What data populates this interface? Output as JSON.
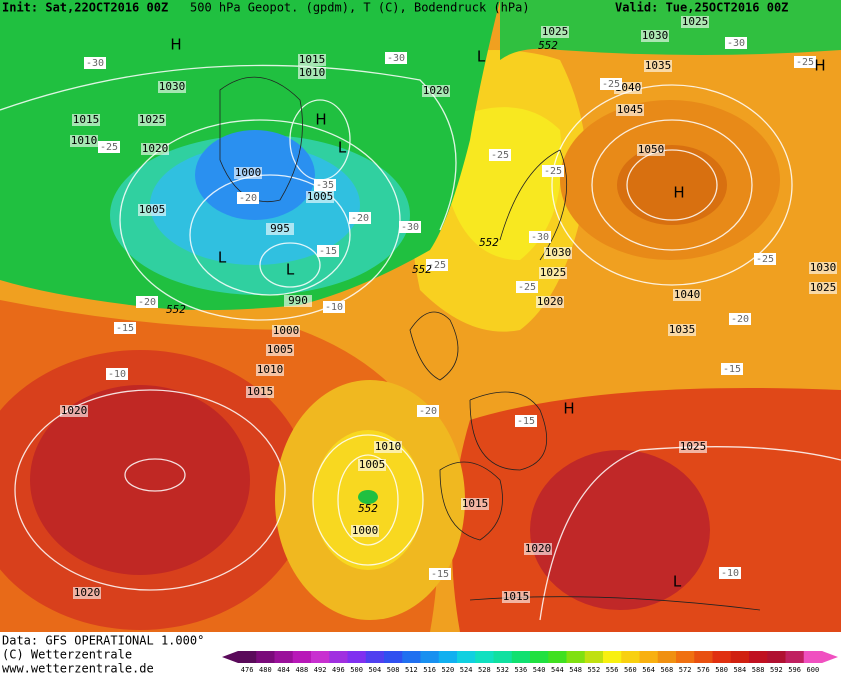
{
  "header": {
    "init": "Init: Sat,22OCT2016 00Z",
    "title": "500 hPa Geopot. (gpdm), T (C), Bodendruck (hPa)",
    "valid": "Valid: Tue,25OCT2016 00Z"
  },
  "isobar_labels": [
    "1025",
    "1030",
    "1025",
    "1035",
    "1040",
    "1045",
    "1050",
    "1015",
    "1010",
    "1030",
    "1020",
    "1015",
    "1025",
    "1010",
    "1020",
    "1000",
    "1005",
    "1005",
    "995",
    "990",
    "1000",
    "1005",
    "1010",
    "1015",
    "1020",
    "1030",
    "1025",
    "1020",
    "1040",
    "1035",
    "1030",
    "1025",
    "1025",
    "1010",
    "1005",
    "1000",
    "1015",
    "1020",
    "1015",
    "1020"
  ],
  "temperature_labels": [
    "-30",
    "-30",
    "-30",
    "-25",
    "-25",
    "-25",
    "-25",
    "-25",
    "-35",
    "-20",
    "-20",
    "-30",
    "-15",
    "-25",
    "-30",
    "-25",
    "-20",
    "-10",
    "-15",
    "-25",
    "-20",
    "-15",
    "-10",
    "-20",
    "-15",
    "-15",
    "-10"
  ],
  "height_labels": [
    "552",
    "552",
    "552",
    "552",
    "552"
  ],
  "centers": [
    "H",
    "L",
    "H",
    "H",
    "L",
    "H",
    "L",
    "L",
    "H",
    "L"
  ],
  "footer": {
    "data": "Data: GFS OPERATIONAL 1.000°",
    "copyright": "(C) Wetterzentrale",
    "url": "www.wetterzentrale.de"
  },
  "colorbar": {
    "ticks": [
      476,
      480,
      484,
      488,
      492,
      496,
      500,
      504,
      508,
      512,
      516,
      520,
      524,
      528,
      532,
      536,
      540,
      544,
      548,
      552,
      556,
      560,
      564,
      568,
      572,
      576,
      580,
      584,
      588,
      592,
      596,
      600
    ],
    "colors": [
      "#5a0a5a",
      "#7a0a7a",
      "#9a109a",
      "#b818b8",
      "#c830d0",
      "#a030e0",
      "#8030f0",
      "#5040f0",
      "#3050f0",
      "#2070f0",
      "#1890f0",
      "#10b0f0",
      "#10d0e0",
      "#10e0c0",
      "#10e0a0",
      "#10e070",
      "#20e040",
      "#40e020",
      "#80e010",
      "#c0e010",
      "#f8f010",
      "#f8d010",
      "#f8b010",
      "#f09010",
      "#f07010",
      "#e85010",
      "#e03010",
      "#d02010",
      "#c01020",
      "#b01030",
      "#c02060",
      "#f050c0"
    ]
  }
}
